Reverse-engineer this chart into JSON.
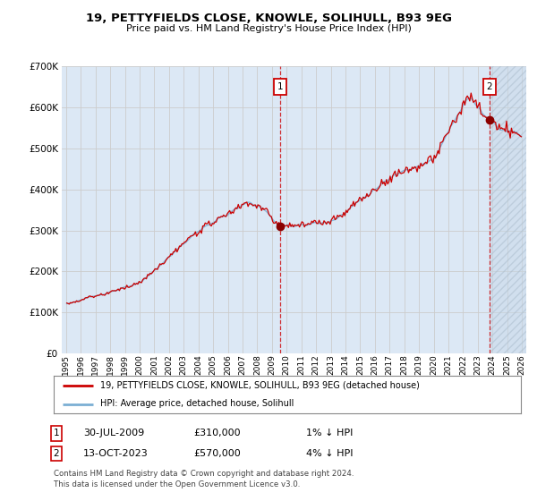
{
  "title": "19, PETTYFIELDS CLOSE, KNOWLE, SOLIHULL, B93 9EG",
  "subtitle": "Price paid vs. HM Land Registry's House Price Index (HPI)",
  "legend_line1": "19, PETTYFIELDS CLOSE, KNOWLE, SOLIHULL, B93 9EG (detached house)",
  "legend_line2": "HPI: Average price, detached house, Solihull",
  "annotation1_date": "30-JUL-2009",
  "annotation1_price": "£310,000",
  "annotation1_hpi": "1% ↓ HPI",
  "annotation2_date": "13-OCT-2023",
  "annotation2_price": "£570,000",
  "annotation2_hpi": "4% ↓ HPI",
  "footnote1": "Contains HM Land Registry data © Crown copyright and database right 2024.",
  "footnote2": "This data is licensed under the Open Government Licence v3.0.",
  "hpi_color": "#7bafd4",
  "price_color": "#cc0000",
  "highlight_color": "#dce8f5",
  "background_color": "#dce8f5",
  "ylim": [
    0,
    700000
  ],
  "yticks": [
    0,
    100000,
    200000,
    300000,
    400000,
    500000,
    600000,
    700000
  ],
  "xlim_start": 1994.7,
  "xlim_end": 2026.3,
  "sale1_year_float": 2009.54,
  "sale1_price": 310000,
  "sale2_year_float": 2023.79,
  "sale2_price": 570000
}
